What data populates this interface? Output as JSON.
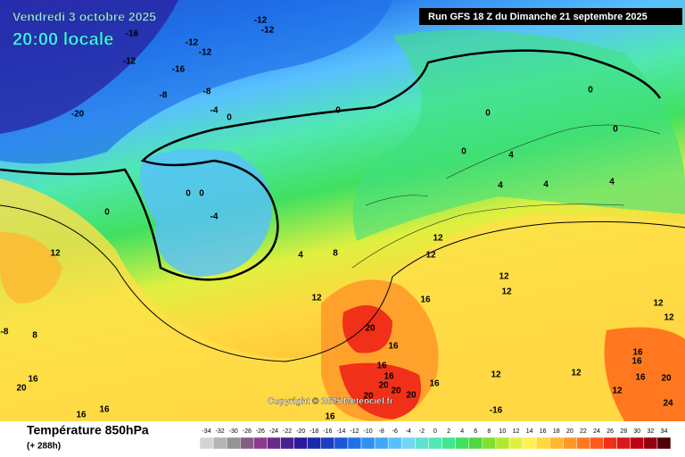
{
  "header": {
    "date": "Vendredi 3 octobre 2025",
    "time": "20:00 locale",
    "run": "Run GFS 18 Z du Dimanche 21 septembre 2025"
  },
  "copyright": "Copyright © 2025 Meteociel.fr",
  "legend": {
    "title": "Température 850hPa",
    "subtitle": "(+ 288h)",
    "scale": [
      -34,
      -32,
      -30,
      -28,
      -26,
      -24,
      -22,
      -20,
      -18,
      -16,
      -14,
      -12,
      -10,
      -8,
      -6,
      -4,
      -2,
      0,
      2,
      4,
      6,
      8,
      10,
      12,
      14,
      16,
      18,
      20,
      22,
      24,
      26,
      28,
      30,
      32,
      34
    ],
    "colors": [
      "#d4d4d4",
      "#b4b4b4",
      "#949494",
      "#806080",
      "#8e3a8e",
      "#6a2a8a",
      "#4a2090",
      "#2a1a9a",
      "#1a2aa8",
      "#1a40c0",
      "#1a58d8",
      "#2070e8",
      "#3090f0",
      "#40a8f8",
      "#58c0ff",
      "#70d8f0",
      "#60e0d0",
      "#50e8b0",
      "#40e890",
      "#40e060",
      "#50d840",
      "#80e030",
      "#b0e830",
      "#e0f040",
      "#fff050",
      "#ffd840",
      "#ffb830",
      "#ff9828",
      "#ff7820",
      "#ff5818",
      "#f03018",
      "#d81818",
      "#c00010",
      "#900010",
      "#500008"
    ]
  },
  "map": {
    "contour_labels": [
      -12,
      -12,
      -16,
      -12,
      -12,
      -12,
      -16,
      -8,
      -8,
      -4,
      0,
      0,
      0,
      0,
      0,
      0,
      4,
      4,
      4,
      4,
      -20,
      0,
      0,
      0,
      -4,
      4,
      8,
      12,
      12,
      12,
      12,
      12,
      12,
      12,
      16,
      16,
      20,
      16,
      16,
      20,
      20,
      20,
      16,
      20,
      16,
      16,
      16,
      16,
      12,
      12,
      20,
      24,
      12,
      -16,
      12,
      8,
      20,
      16,
      16,
      16,
      -8
    ]
  }
}
